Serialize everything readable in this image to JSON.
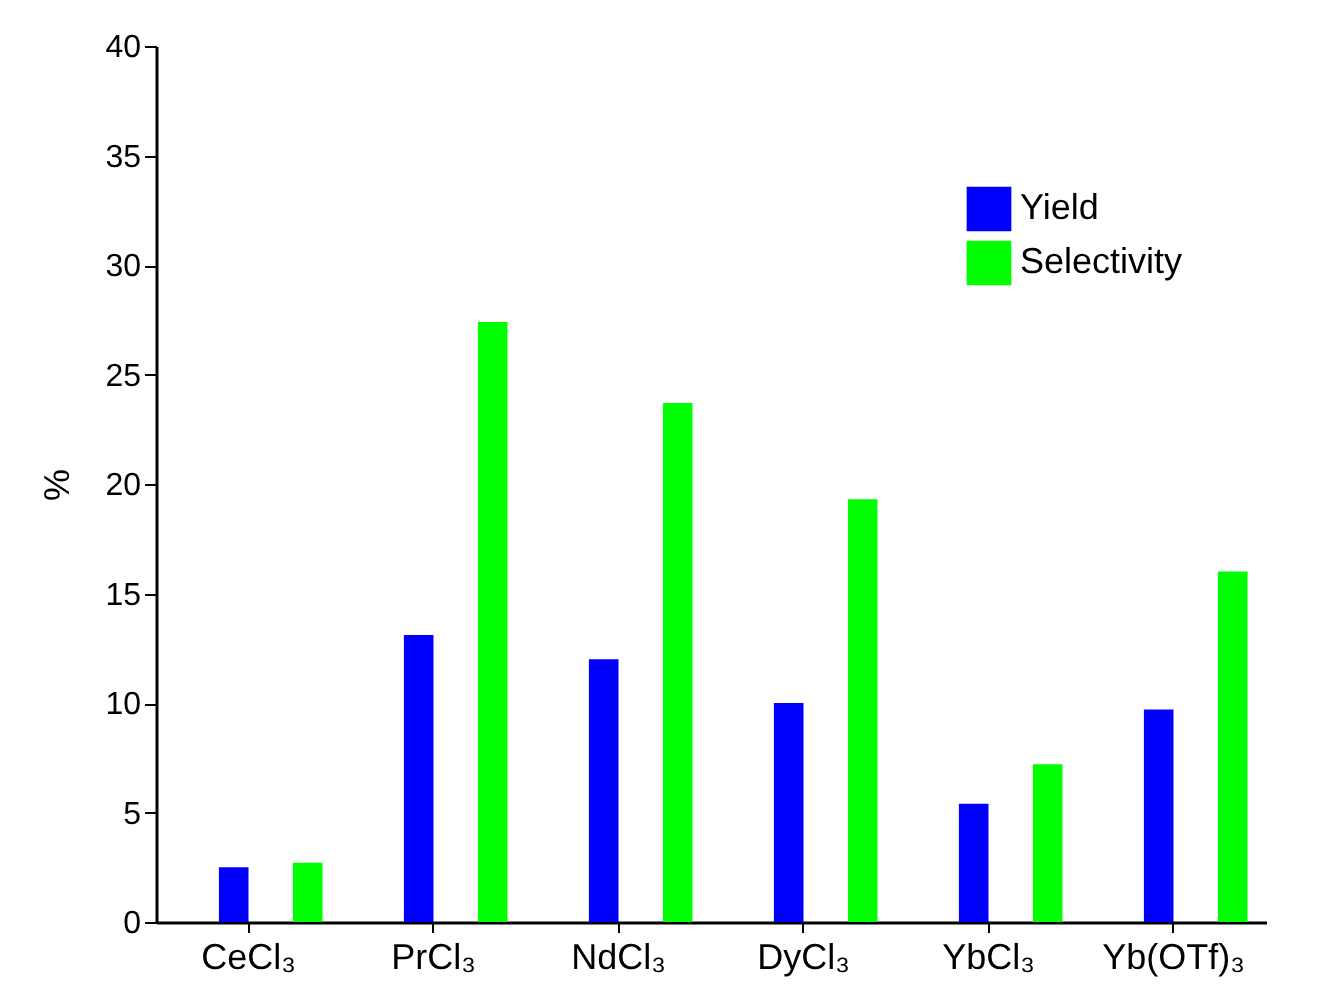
{
  "chart_data": {
    "type": "bar",
    "ylabel": "%",
    "categories": [
      "CeCl₃",
      "PrCl₃",
      "NdCl₃",
      "DyCl₃",
      "YbCl₃",
      "Yb(OTf)₃"
    ],
    "series": [
      {
        "name": "Yield",
        "color": "#0000ff",
        "values": [
          2.5,
          13.1,
          12.0,
          10.0,
          5.4,
          9.7
        ]
      },
      {
        "name": "Selectivity",
        "color": "#00ff00",
        "values": [
          2.7,
          27.4,
          23.7,
          19.3,
          7.2,
          16.0
        ]
      }
    ],
    "ylim": [
      0,
      40
    ],
    "yticks": [
      0,
      5,
      10,
      15,
      20,
      25,
      30,
      35,
      40
    ],
    "legend": "top right"
  }
}
